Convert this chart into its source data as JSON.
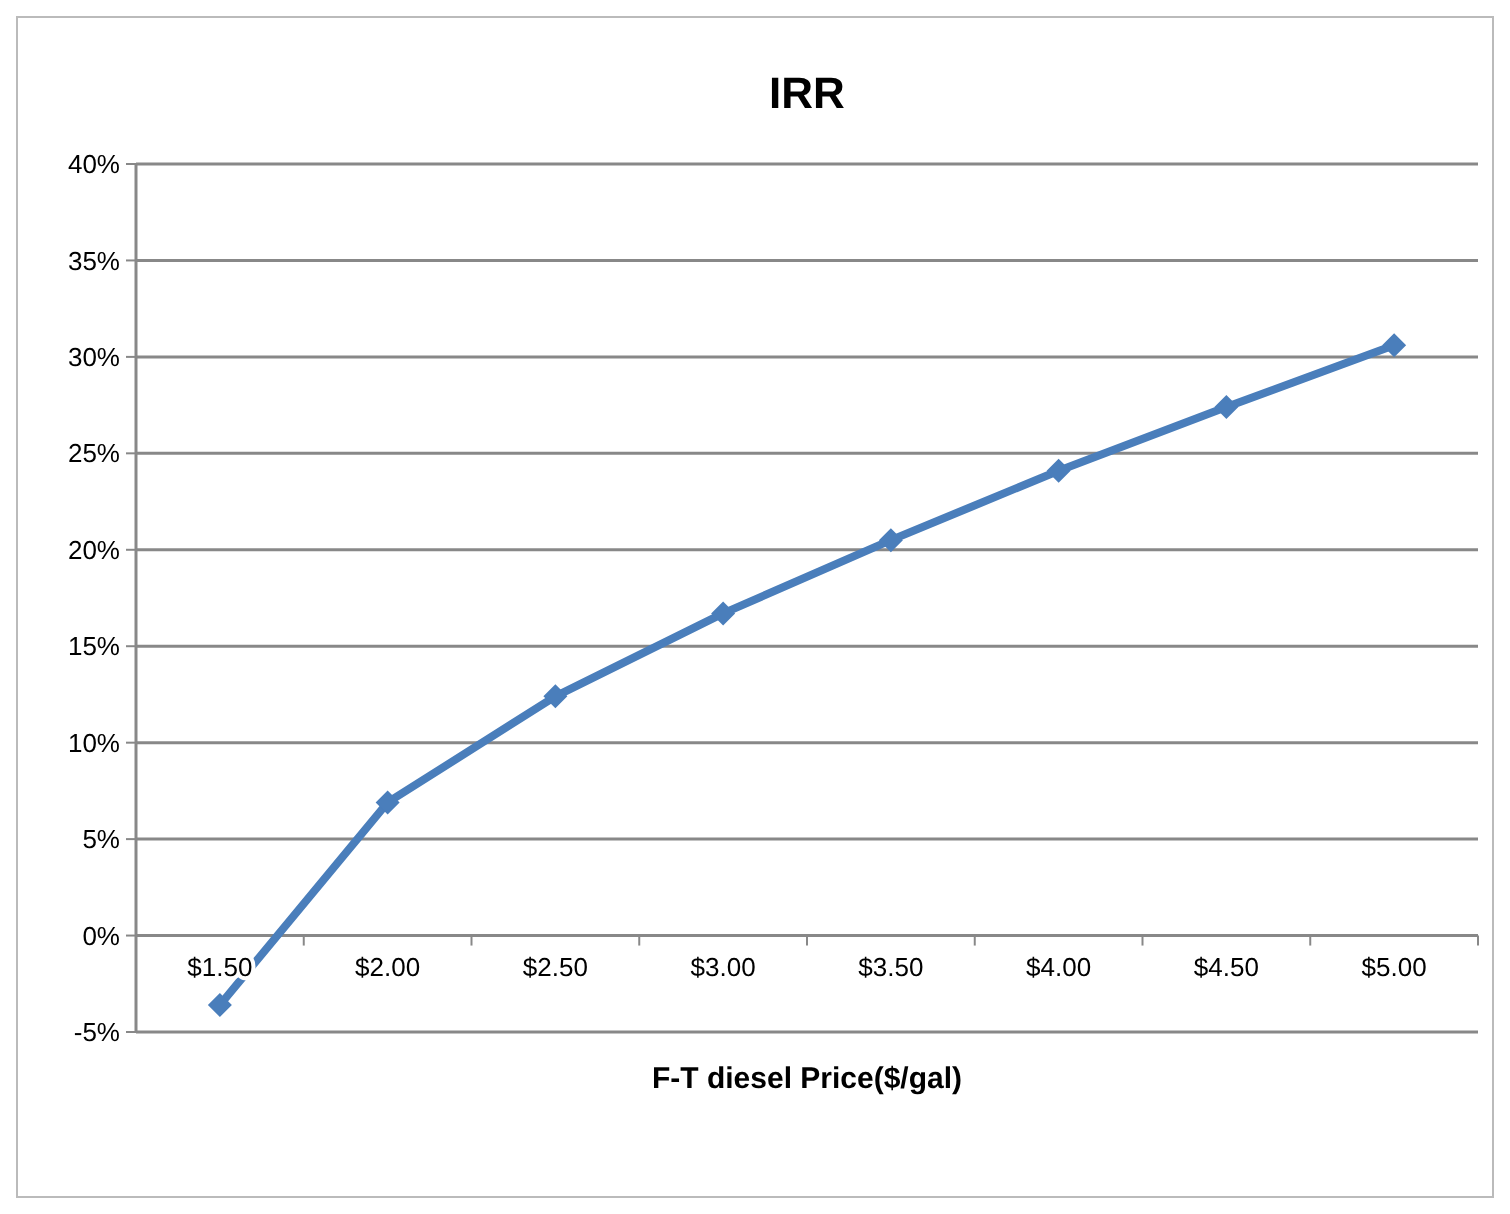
{
  "chart_data": {
    "type": "line",
    "title": "IRR",
    "xlabel": "F-T diesel Price($/gal)",
    "categories": [
      "$1.50",
      "$2.00",
      "$2.50",
      "$3.00",
      "$3.50",
      "$4.00",
      "$4.50",
      "$5.00"
    ],
    "series": [
      {
        "color": "#4a7ebb",
        "values": [
          -3.6,
          6.9,
          12.4,
          16.7,
          20.5,
          24.1,
          27.4,
          30.6
        ]
      }
    ],
    "ylim": [
      -5,
      40
    ],
    "yticks": [
      {
        "value": -5,
        "label": "-5%"
      },
      {
        "value": 0,
        "label": "0%"
      },
      {
        "value": 5,
        "label": "5%"
      },
      {
        "value": 10,
        "label": "10%"
      },
      {
        "value": 15,
        "label": "15%"
      },
      {
        "value": 20,
        "label": "20%"
      },
      {
        "value": 25,
        "label": "25%"
      },
      {
        "value": 30,
        "label": "30%"
      },
      {
        "value": 35,
        "label": "35%"
      },
      {
        "value": 40,
        "label": "40%"
      }
    ],
    "grid": "y",
    "marker": "diamond",
    "line_style": "solid"
  }
}
